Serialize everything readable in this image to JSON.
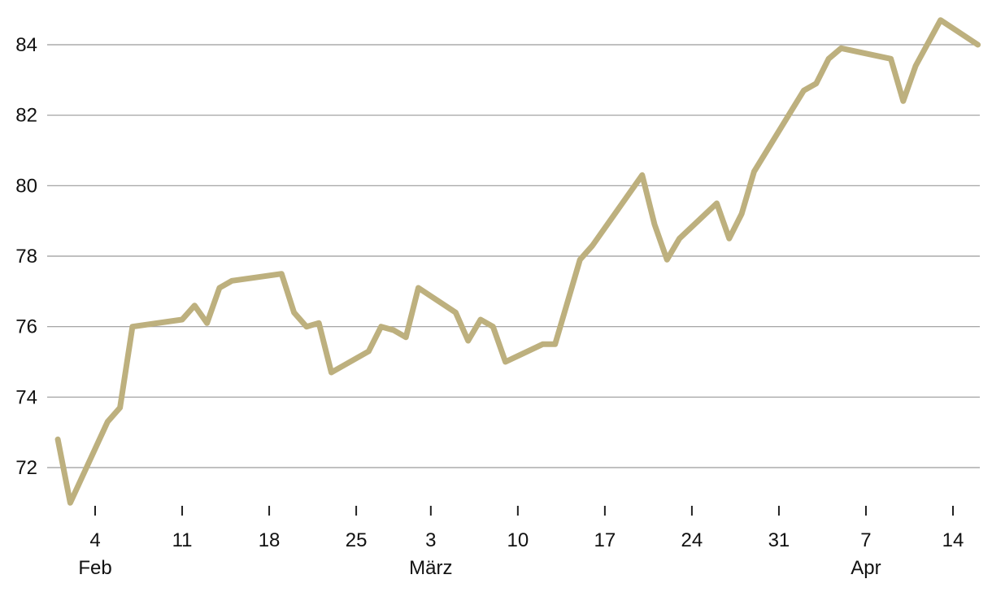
{
  "chart_data": {
    "type": "line",
    "title": "",
    "xlabel": "",
    "ylabel": "",
    "ylim": [
      70.8,
      85.2
    ],
    "y_ticks": [
      72,
      74,
      76,
      78,
      80,
      82,
      84
    ],
    "grid": true,
    "x_range": [
      "2019-02-01",
      "2019-04-15"
    ],
    "x_ticks": [
      {
        "date": "2019-02-04",
        "label": "4"
      },
      {
        "date": "2019-02-11",
        "label": "11"
      },
      {
        "date": "2019-02-18",
        "label": "18"
      },
      {
        "date": "2019-02-25",
        "label": "25"
      },
      {
        "date": "2019-03-03",
        "label": "3"
      },
      {
        "date": "2019-03-10",
        "label": "10"
      },
      {
        "date": "2019-03-17",
        "label": "17"
      },
      {
        "date": "2019-03-24",
        "label": "24"
      },
      {
        "date": "2019-03-31",
        "label": "31"
      },
      {
        "date": "2019-04-07",
        "label": "7"
      },
      {
        "date": "2019-04-14",
        "label": "14"
      }
    ],
    "month_labels": [
      {
        "date": "2019-02-04",
        "label": "Feb"
      },
      {
        "date": "2019-03-03",
        "label": "März"
      },
      {
        "date": "2019-04-07",
        "label": "Apr"
      }
    ],
    "color": "#bdb07e",
    "series": [
      {
        "x": [
          "2019-02-01",
          "2019-02-02",
          "2019-02-05",
          "2019-02-06",
          "2019-02-07",
          "2019-02-11",
          "2019-02-12",
          "2019-02-13",
          "2019-02-14",
          "2019-02-15",
          "2019-02-19",
          "2019-02-20",
          "2019-02-21",
          "2019-02-22",
          "2019-02-23",
          "2019-02-26",
          "2019-02-27",
          "2019-02-28",
          "2019-03-01",
          "2019-03-02",
          "2019-03-05",
          "2019-03-06",
          "2019-03-07",
          "2019-03-08",
          "2019-03-09",
          "2019-03-12",
          "2019-03-13",
          "2019-03-15",
          "2019-03-16",
          "2019-03-20",
          "2019-03-21",
          "2019-03-22",
          "2019-03-23",
          "2019-03-26",
          "2019-03-27",
          "2019-03-28",
          "2019-03-29",
          "2019-04-02",
          "2019-04-03",
          "2019-04-04",
          "2019-04-05",
          "2019-04-09",
          "2019-04-10",
          "2019-04-11",
          "2019-04-13",
          "2019-04-16"
        ],
        "values": [
          72.8,
          71.0,
          73.3,
          73.7,
          76.0,
          76.2,
          76.6,
          76.1,
          77.1,
          77.3,
          77.5,
          76.4,
          76.0,
          76.1,
          74.7,
          75.3,
          76.0,
          75.9,
          75.7,
          77.1,
          76.4,
          75.6,
          76.2,
          76.0,
          75.0,
          75.5,
          75.5,
          77.9,
          78.3,
          80.3,
          78.9,
          77.9,
          78.5,
          79.5,
          78.5,
          79.2,
          80.4,
          82.7,
          82.9,
          83.6,
          83.9,
          83.6,
          82.4,
          83.4,
          84.7,
          84.0
        ]
      }
    ]
  }
}
